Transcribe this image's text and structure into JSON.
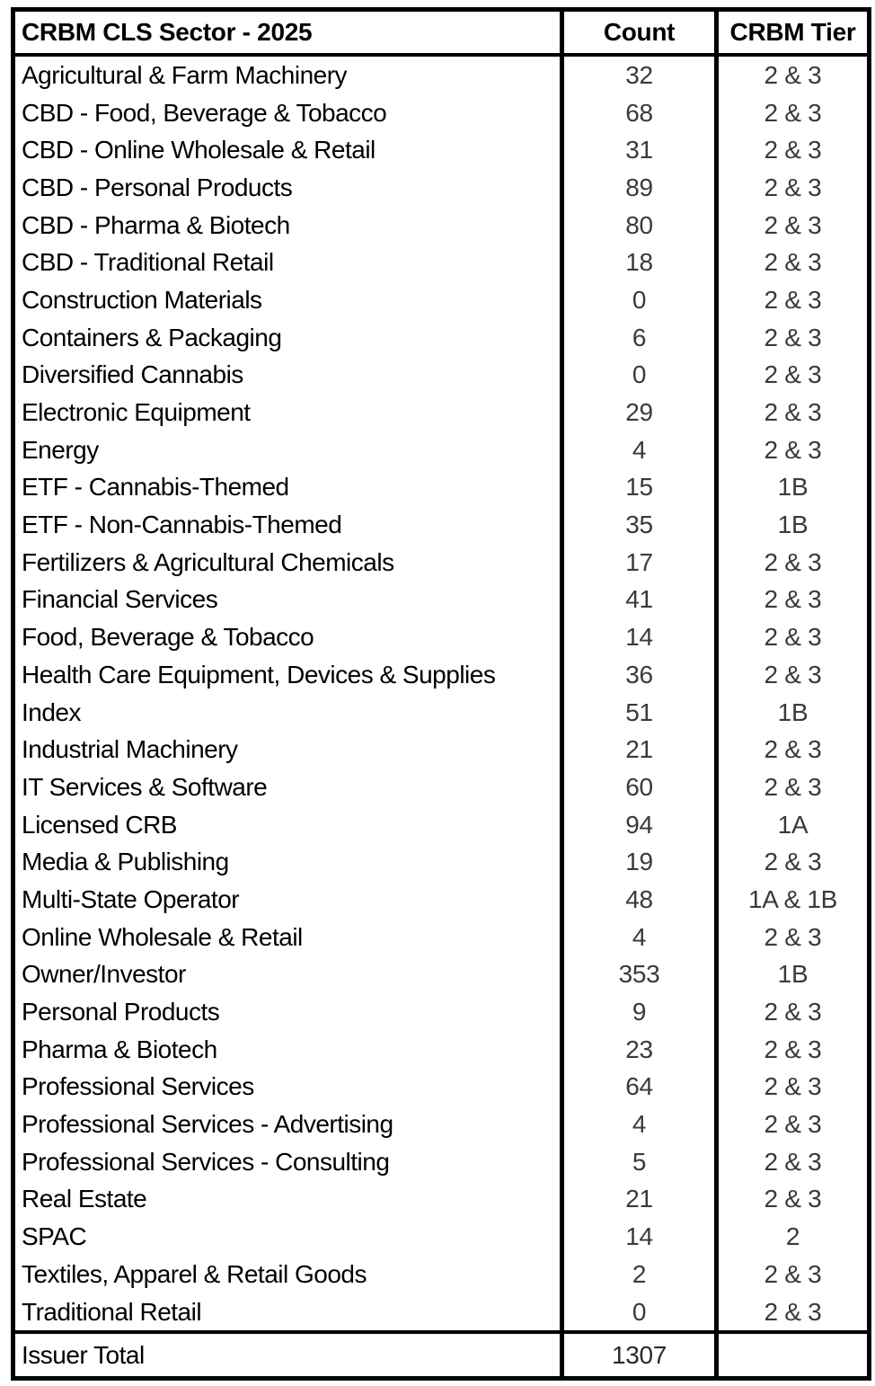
{
  "colors": {
    "background": "#ffffff",
    "border": "#000000",
    "header_text": "#000000",
    "sector_text": "#000000",
    "value_text": "#3a3a3a"
  },
  "chart_data": {
    "type": "table",
    "title": "CRBM CLS Sector - 2025",
    "columns": [
      "CRBM CLS Sector - 2025",
      "Count",
      "CRBM Tier"
    ],
    "rows": [
      [
        "Agricultural & Farm Machinery",
        32,
        "2 & 3"
      ],
      [
        "CBD - Food, Beverage & Tobacco",
        68,
        "2 & 3"
      ],
      [
        "CBD - Online Wholesale & Retail",
        31,
        "2 & 3"
      ],
      [
        "CBD - Personal Products",
        89,
        "2 & 3"
      ],
      [
        "CBD - Pharma & Biotech",
        80,
        "2 & 3"
      ],
      [
        "CBD - Traditional Retail",
        18,
        "2 & 3"
      ],
      [
        "Construction Materials",
        0,
        "2 & 3"
      ],
      [
        "Containers & Packaging",
        6,
        "2 & 3"
      ],
      [
        "Diversified Cannabis",
        0,
        "2 & 3"
      ],
      [
        "Electronic Equipment",
        29,
        "2 & 3"
      ],
      [
        "Energy",
        4,
        "2 & 3"
      ],
      [
        "ETF - Cannabis-Themed",
        15,
        "1B"
      ],
      [
        "ETF - Non-Cannabis-Themed",
        35,
        "1B"
      ],
      [
        "Fertilizers & Agricultural Chemicals",
        17,
        "2 & 3"
      ],
      [
        "Financial Services",
        41,
        "2 & 3"
      ],
      [
        "Food, Beverage & Tobacco",
        14,
        "2 & 3"
      ],
      [
        "Health Care Equipment, Devices & Supplies",
        36,
        "2 & 3"
      ],
      [
        "Index",
        51,
        "1B"
      ],
      [
        "Industrial Machinery",
        21,
        "2 & 3"
      ],
      [
        "IT Services & Software",
        60,
        "2 & 3"
      ],
      [
        "Licensed CRB",
        94,
        "1A"
      ],
      [
        "Media & Publishing",
        19,
        "2 & 3"
      ],
      [
        "Multi-State Operator",
        48,
        "1A & 1B"
      ],
      [
        "Online Wholesale & Retail",
        4,
        "2 & 3"
      ],
      [
        "Owner/Investor",
        353,
        "1B"
      ],
      [
        "Personal Products",
        9,
        "2 & 3"
      ],
      [
        "Pharma & Biotech",
        23,
        "2 & 3"
      ],
      [
        "Professional Services",
        64,
        "2 & 3"
      ],
      [
        "Professional Services - Advertising",
        4,
        "2 & 3"
      ],
      [
        "Professional Services - Consulting",
        5,
        "2 & 3"
      ],
      [
        "Real Estate",
        21,
        "2 & 3"
      ],
      [
        "SPAC",
        14,
        "2"
      ],
      [
        "Textiles, Apparel & Retail Goods",
        2,
        "2 & 3"
      ],
      [
        "Traditional Retail",
        0,
        "2 & 3"
      ]
    ],
    "total_row": [
      "Issuer Total",
      1307,
      ""
    ]
  }
}
